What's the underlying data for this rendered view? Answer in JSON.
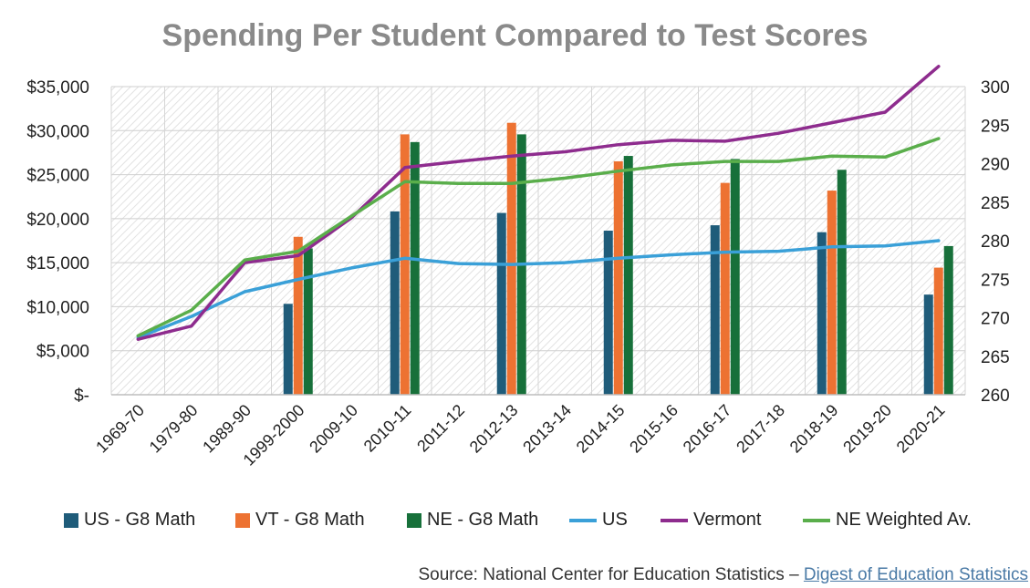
{
  "chart_data": {
    "type": "bar",
    "title": "Spending Per Student Compared to Test Scores",
    "categories": [
      "1969-70",
      "1979-80",
      "1989-90",
      "1999-2000",
      "2009-10",
      "2010-11",
      "2011-12",
      "2012-13",
      "2013-14",
      "2014-15",
      "2015-16",
      "2016-17",
      "2017-18",
      "2018-19",
      "2019-20",
      "2020-21"
    ],
    "y_left": {
      "ylim": [
        0,
        35000
      ],
      "ticks": [
        0,
        5000,
        10000,
        15000,
        20000,
        25000,
        30000,
        35000
      ],
      "tick_labels": [
        "$-",
        "$5,000",
        "$10,000",
        "$15,000",
        "$20,000",
        "$25,000",
        "$30,000",
        "$35,000"
      ]
    },
    "y_right": {
      "ylim": [
        260,
        300
      ],
      "ticks": [
        260,
        265,
        270,
        275,
        280,
        285,
        290,
        295,
        300
      ],
      "tick_labels": [
        "260",
        "265",
        "270",
        "275",
        "280",
        "285",
        "290",
        "295",
        "300"
      ]
    },
    "bar_series": [
      {
        "name": "US - G8 Math",
        "color": "#1f5c7a",
        "axis": "right",
        "values": [
          null,
          null,
          null,
          271.8,
          null,
          283.8,
          null,
          283.6,
          null,
          281.3,
          null,
          282.0,
          null,
          281.1,
          null,
          273.0
        ]
      },
      {
        "name": "VT - G8 Math",
        "color": "#ed7232",
        "axis": "right",
        "values": [
          null,
          null,
          null,
          280.5,
          null,
          293.8,
          null,
          295.3,
          null,
          290.3,
          null,
          287.5,
          null,
          286.5,
          null,
          276.5
        ]
      },
      {
        "name": "NE - G8 Math",
        "color": "#17703a",
        "axis": "right",
        "values": [
          null,
          null,
          null,
          279.0,
          null,
          292.8,
          null,
          293.8,
          null,
          291.0,
          null,
          290.6,
          null,
          289.2,
          null,
          279.3
        ]
      }
    ],
    "line_series": [
      {
        "name": "US",
        "color": "#3aa0d8",
        "axis": "left",
        "values": [
          6500,
          8900,
          11700,
          13100,
          14400,
          15500,
          14900,
          14800,
          15000,
          15500,
          15900,
          16200,
          16300,
          16800,
          16900,
          17500
        ]
      },
      {
        "name": "Vermont",
        "color": "#8e2c8e",
        "axis": "left",
        "values": [
          6300,
          7800,
          15000,
          15800,
          20100,
          25800,
          26500,
          27100,
          27600,
          28400,
          28900,
          28800,
          29700,
          30900,
          32100,
          37300
        ]
      },
      {
        "name": "NE Weighted Av.",
        "color": "#5aae4b",
        "axis": "left",
        "values": [
          6700,
          9600,
          15300,
          16300,
          20300,
          24200,
          24000,
          24000,
          24600,
          25400,
          26100,
          26500,
          26500,
          27100,
          27000,
          29100
        ]
      }
    ],
    "legend_position": "bottom",
    "grid": "hatched-background"
  },
  "source": {
    "prefix": "Source: National Center for Education Statistics – ",
    "link_text": "Digest of Education Statistics"
  }
}
